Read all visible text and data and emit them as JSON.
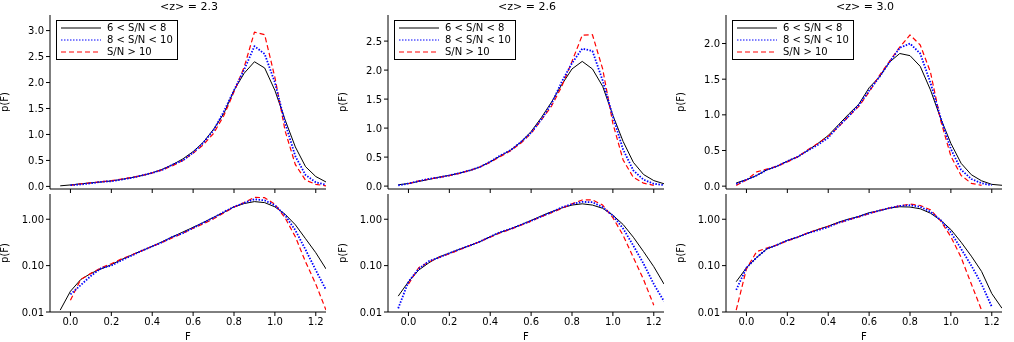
{
  "chart_data": [
    {
      "type": "line",
      "title": "<z> = 2.3",
      "ylabel": "p(F)",
      "x": [
        -0.05,
        0,
        0.05,
        0.1,
        0.15,
        0.2,
        0.25,
        0.3,
        0.35,
        0.4,
        0.45,
        0.5,
        0.55,
        0.6,
        0.65,
        0.7,
        0.75,
        0.8,
        0.85,
        0.9,
        0.95,
        1.0,
        1.05,
        1.1,
        1.15,
        1.2,
        1.25
      ],
      "xlim": [
        -0.1,
        1.25
      ],
      "xticks": [
        {
          "value": 0,
          "label": null
        },
        {
          "value": 0.2,
          "label": null
        },
        {
          "value": 0.4,
          "label": null
        },
        {
          "value": 0.6,
          "label": null
        },
        {
          "value": 0.8,
          "label": null
        },
        {
          "value": 1.0,
          "label": null
        },
        {
          "value": 1.2,
          "label": null
        }
      ],
      "ylim": [
        -0.05,
        3.3
      ],
      "yticks": [
        {
          "value": 0,
          "label": "0.0"
        },
        {
          "value": 0.5,
          "label": "0.5"
        },
        {
          "value": 1,
          "label": "1.0"
        },
        {
          "value": 1.5,
          "label": "1.5"
        },
        {
          "value": 2,
          "label": "2.0"
        },
        {
          "value": 2.5,
          "label": "2.5"
        },
        {
          "value": 3,
          "label": "3.0"
        }
      ],
      "tick_labels": "y",
      "legend": "top left",
      "grid": false,
      "series": [
        {
          "name": "6 < S/N < 8",
          "color": "#000000",
          "line_style": "solid",
          "values": [
            0.011,
            0.028,
            0.05,
            0.068,
            0.085,
            0.105,
            0.135,
            0.17,
            0.21,
            0.26,
            0.33,
            0.42,
            0.53,
            0.67,
            0.85,
            1.1,
            1.4,
            1.85,
            2.18,
            2.4,
            2.28,
            1.85,
            1.28,
            0.76,
            0.38,
            0.19,
            0.085
          ]
        },
        {
          "name": "8 < S/N < 10",
          "color": "#0000ff",
          "line_style": "dotted",
          "values": [
            null,
            0.024,
            0.038,
            0.06,
            0.088,
            0.1,
            0.13,
            0.165,
            0.21,
            0.26,
            0.32,
            0.42,
            0.5,
            0.65,
            0.84,
            1.08,
            1.44,
            1.85,
            2.25,
            2.7,
            2.55,
            2.0,
            1.22,
            0.58,
            0.22,
            0.08,
            0.03
          ]
        },
        {
          "name": "S/N > 10",
          "color": "#ff0000",
          "line_style": "dashed",
          "values": [
            null,
            0.018,
            0.05,
            0.068,
            0.09,
            0.11,
            0.14,
            0.17,
            0.21,
            0.26,
            0.32,
            0.4,
            0.5,
            0.64,
            0.8,
            1.02,
            1.36,
            1.82,
            2.3,
            2.97,
            2.92,
            2.1,
            1.07,
            0.42,
            0.12,
            0.04,
            0.011
          ]
        }
      ]
    },
    {
      "type": "line",
      "title": "<z> = 2.6",
      "ylabel": "p(F)",
      "x": [
        -0.05,
        0,
        0.05,
        0.1,
        0.15,
        0.2,
        0.25,
        0.3,
        0.35,
        0.4,
        0.45,
        0.5,
        0.55,
        0.6,
        0.65,
        0.7,
        0.75,
        0.8,
        0.85,
        0.9,
        0.95,
        1.0,
        1.05,
        1.1,
        1.15,
        1.2,
        1.25
      ],
      "xlim": [
        -0.1,
        1.25
      ],
      "xticks": [
        {
          "value": 0,
          "label": null
        },
        {
          "value": 0.2,
          "label": null
        },
        {
          "value": 0.4,
          "label": null
        },
        {
          "value": 0.6,
          "label": null
        },
        {
          "value": 0.8,
          "label": null
        },
        {
          "value": 1.0,
          "label": null
        },
        {
          "value": 1.2,
          "label": null
        }
      ],
      "ylim": [
        -0.05,
        2.95
      ],
      "yticks": [
        {
          "value": 0,
          "label": "0.0"
        },
        {
          "value": 0.5,
          "label": "0.5"
        },
        {
          "value": 1,
          "label": "1.0"
        },
        {
          "value": 1.5,
          "label": "1.5"
        },
        {
          "value": 2,
          "label": "2.0"
        },
        {
          "value": 2.5,
          "label": "2.5"
        }
      ],
      "tick_labels": "y",
      "legend": "top left",
      "grid": false,
      "series": [
        {
          "name": "6 < S/N < 8",
          "color": "#000000",
          "line_style": "solid",
          "values": [
            0.022,
            0.045,
            0.08,
            0.115,
            0.155,
            0.185,
            0.225,
            0.27,
            0.33,
            0.42,
            0.52,
            0.62,
            0.76,
            0.94,
            1.18,
            1.45,
            1.75,
            2.02,
            2.15,
            2.02,
            1.72,
            1.22,
            0.77,
            0.41,
            0.2,
            0.095,
            0.04
          ]
        },
        {
          "name": "8 < S/N < 10",
          "color": "#0000ff",
          "line_style": "dotted",
          "values": [
            0.012,
            0.045,
            0.085,
            0.125,
            0.15,
            0.185,
            0.225,
            0.27,
            0.33,
            0.42,
            0.53,
            0.62,
            0.76,
            0.92,
            1.15,
            1.42,
            1.8,
            2.12,
            2.37,
            2.33,
            1.82,
            1.2,
            0.63,
            0.27,
            0.11,
            0.04,
            0.017
          ]
        },
        {
          "name": "S/N > 10",
          "color": "#ff0000",
          "line_style": "dashed",
          "values": [
            null,
            0.04,
            0.09,
            0.12,
            0.15,
            0.18,
            0.22,
            0.27,
            0.33,
            0.41,
            0.51,
            0.61,
            0.74,
            0.91,
            1.14,
            1.38,
            1.72,
            2.15,
            2.6,
            2.61,
            2.02,
            1.08,
            0.45,
            0.15,
            0.05,
            0.014,
            null
          ]
        }
      ]
    },
    {
      "type": "line",
      "title": "<z> = 3.0",
      "ylabel": "p(F)",
      "x": [
        -0.05,
        0,
        0.05,
        0.1,
        0.15,
        0.2,
        0.25,
        0.3,
        0.35,
        0.4,
        0.45,
        0.5,
        0.55,
        0.6,
        0.65,
        0.7,
        0.75,
        0.8,
        0.85,
        0.9,
        0.95,
        1.0,
        1.05,
        1.1,
        1.15,
        1.2,
        1.25
      ],
      "xlim": [
        -0.1,
        1.25
      ],
      "xticks": [
        {
          "value": 0,
          "label": null
        },
        {
          "value": 0.2,
          "label": null
        },
        {
          "value": 0.4,
          "label": null
        },
        {
          "value": 0.6,
          "label": null
        },
        {
          "value": 0.8,
          "label": null
        },
        {
          "value": 1.0,
          "label": null
        },
        {
          "value": 1.2,
          "label": null
        }
      ],
      "ylim": [
        -0.04,
        2.4
      ],
      "yticks": [
        {
          "value": 0,
          "label": "0.0"
        },
        {
          "value": 0.5,
          "label": "0.5"
        },
        {
          "value": 1,
          "label": "1.0"
        },
        {
          "value": 1.5,
          "label": "1.5"
        },
        {
          "value": 2,
          "label": "2.0"
        }
      ],
      "tick_labels": "y",
      "legend": "top left",
      "grid": false,
      "series": [
        {
          "name": "6 < S/N < 8",
          "color": "#000000",
          "line_style": "solid",
          "values": [
            0.045,
            0.09,
            0.15,
            0.23,
            0.28,
            0.35,
            0.41,
            0.5,
            0.6,
            0.71,
            0.86,
            1.01,
            1.15,
            1.38,
            1.53,
            1.74,
            1.86,
            1.83,
            1.68,
            1.35,
            0.95,
            0.6,
            0.32,
            0.16,
            0.075,
            0.025,
            0.012
          ]
        },
        {
          "name": "8 < S/N < 10",
          "color": "#0000ff",
          "line_style": "dotted",
          "values": [
            0.03,
            0.09,
            0.15,
            0.23,
            0.28,
            0.35,
            0.41,
            0.5,
            0.58,
            0.68,
            0.84,
            0.98,
            1.14,
            1.34,
            1.53,
            1.74,
            1.94,
            2.0,
            1.86,
            1.45,
            0.96,
            0.52,
            0.23,
            0.1,
            0.04,
            0.013,
            null
          ]
        },
        {
          "name": "S/N > 10",
          "color": "#ff0000",
          "line_style": "dashed",
          "values": [
            0.011,
            0.085,
            0.2,
            0.24,
            0.28,
            0.34,
            0.41,
            0.51,
            0.6,
            0.7,
            0.83,
            0.98,
            1.12,
            1.32,
            1.55,
            1.75,
            1.95,
            2.12,
            1.98,
            1.6,
            0.92,
            0.42,
            0.15,
            0.04,
            0.011,
            null,
            null
          ]
        }
      ]
    },
    {
      "type": "line",
      "xlabel": "F",
      "ylabel": "p(F)",
      "log": "y",
      "x": [
        -0.05,
        0,
        0.05,
        0.1,
        0.15,
        0.2,
        0.25,
        0.3,
        0.35,
        0.4,
        0.45,
        0.5,
        0.55,
        0.6,
        0.65,
        0.7,
        0.75,
        0.8,
        0.85,
        0.9,
        0.95,
        1.0,
        1.05,
        1.1,
        1.15,
        1.2,
        1.25
      ],
      "xlim": [
        -0.1,
        1.25
      ],
      "xticks": [
        {
          "value": 0,
          "label": "0.0"
        },
        {
          "value": 0.2,
          "label": "0.2"
        },
        {
          "value": 0.4,
          "label": "0.4"
        },
        {
          "value": 0.6,
          "label": "0.6"
        },
        {
          "value": 0.8,
          "label": "0.8"
        },
        {
          "value": 1.0,
          "label": "1.0"
        },
        {
          "value": 1.2,
          "label": "1.2"
        }
      ],
      "ylim": [
        0.01,
        3.5
      ],
      "yticks": [
        {
          "value": 0.01,
          "label": "0.01"
        },
        {
          "value": 0.1,
          "label": "0.10"
        },
        {
          "value": 1,
          "label": "1.00"
        }
      ],
      "grid": false,
      "series": [
        {
          "color": "#000000",
          "line_style": "solid",
          "values": [
            0.011,
            0.028,
            0.05,
            0.068,
            0.085,
            0.105,
            0.135,
            0.17,
            0.21,
            0.26,
            0.33,
            0.42,
            0.53,
            0.67,
            0.85,
            1.1,
            1.4,
            1.85,
            2.18,
            2.4,
            2.28,
            1.85,
            1.28,
            0.76,
            0.38,
            0.19,
            0.085
          ]
        },
        {
          "color": "#0000ff",
          "line_style": "dotted",
          "values": [
            null,
            0.024,
            0.038,
            0.06,
            0.088,
            0.1,
            0.13,
            0.165,
            0.21,
            0.26,
            0.32,
            0.42,
            0.5,
            0.65,
            0.84,
            1.08,
            1.44,
            1.85,
            2.25,
            2.7,
            2.55,
            2.0,
            1.22,
            0.58,
            0.22,
            0.08,
            0.03
          ]
        },
        {
          "color": "#ff0000",
          "line_style": "dashed",
          "values": [
            null,
            0.018,
            0.05,
            0.068,
            0.09,
            0.11,
            0.14,
            0.17,
            0.21,
            0.26,
            0.32,
            0.4,
            0.5,
            0.64,
            0.8,
            1.02,
            1.36,
            1.82,
            2.3,
            2.97,
            2.92,
            2.1,
            1.07,
            0.42,
            0.12,
            0.04,
            0.011
          ]
        }
      ]
    },
    {
      "type": "line",
      "xlabel": "F",
      "ylabel": "p(F)",
      "log": "y",
      "x": [
        -0.05,
        0,
        0.05,
        0.1,
        0.15,
        0.2,
        0.25,
        0.3,
        0.35,
        0.4,
        0.45,
        0.5,
        0.55,
        0.6,
        0.65,
        0.7,
        0.75,
        0.8,
        0.85,
        0.9,
        0.95,
        1.0,
        1.05,
        1.1,
        1.15,
        1.2,
        1.25
      ],
      "xlim": [
        -0.1,
        1.25
      ],
      "xticks": [
        {
          "value": 0,
          "label": "0.0"
        },
        {
          "value": 0.2,
          "label": "0.2"
        },
        {
          "value": 0.4,
          "label": "0.4"
        },
        {
          "value": 0.6,
          "label": "0.6"
        },
        {
          "value": 0.8,
          "label": "0.8"
        },
        {
          "value": 1.0,
          "label": "1.0"
        },
        {
          "value": 1.2,
          "label": "1.2"
        }
      ],
      "ylim": [
        0.01,
        3.5
      ],
      "yticks": [
        {
          "value": 0.01,
          "label": "0.01"
        },
        {
          "value": 0.1,
          "label": "0.10"
        },
        {
          "value": 1,
          "label": "1.00"
        }
      ],
      "grid": false,
      "series": [
        {
          "color": "#000000",
          "line_style": "solid",
          "values": [
            0.022,
            0.045,
            0.08,
            0.115,
            0.155,
            0.185,
            0.225,
            0.27,
            0.33,
            0.42,
            0.52,
            0.62,
            0.76,
            0.94,
            1.18,
            1.45,
            1.75,
            2.02,
            2.15,
            2.02,
            1.72,
            1.22,
            0.77,
            0.41,
            0.2,
            0.095,
            0.04
          ]
        },
        {
          "color": "#0000ff",
          "line_style": "dotted",
          "values": [
            0.012,
            0.045,
            0.085,
            0.125,
            0.15,
            0.185,
            0.225,
            0.27,
            0.33,
            0.42,
            0.53,
            0.62,
            0.76,
            0.92,
            1.15,
            1.42,
            1.8,
            2.12,
            2.37,
            2.33,
            1.82,
            1.2,
            0.63,
            0.27,
            0.11,
            0.04,
            0.017
          ]
        },
        {
          "color": "#ff0000",
          "line_style": "dashed",
          "values": [
            null,
            0.04,
            0.09,
            0.12,
            0.15,
            0.18,
            0.22,
            0.27,
            0.33,
            0.41,
            0.51,
            0.61,
            0.74,
            0.91,
            1.14,
            1.38,
            1.72,
            2.15,
            2.6,
            2.61,
            2.02,
            1.08,
            0.45,
            0.15,
            0.05,
            0.014,
            null
          ]
        }
      ]
    },
    {
      "type": "line",
      "xlabel": "F",
      "ylabel": "p(F)",
      "log": "y",
      "x": [
        -0.05,
        0,
        0.05,
        0.1,
        0.15,
        0.2,
        0.25,
        0.3,
        0.35,
        0.4,
        0.45,
        0.5,
        0.55,
        0.6,
        0.65,
        0.7,
        0.75,
        0.8,
        0.85,
        0.9,
        0.95,
        1.0,
        1.05,
        1.1,
        1.15,
        1.2,
        1.25
      ],
      "xlim": [
        -0.1,
        1.25
      ],
      "xticks": [
        {
          "value": 0,
          "label": "0.0"
        },
        {
          "value": 0.2,
          "label": "0.2"
        },
        {
          "value": 0.4,
          "label": "0.4"
        },
        {
          "value": 0.6,
          "label": "0.6"
        },
        {
          "value": 0.8,
          "label": "0.8"
        },
        {
          "value": 1.0,
          "label": "1.0"
        },
        {
          "value": 1.2,
          "label": "1.2"
        }
      ],
      "ylim": [
        0.01,
        3.5
      ],
      "yticks": [
        {
          "value": 0.01,
          "label": "0.01"
        },
        {
          "value": 0.1,
          "label": "0.10"
        },
        {
          "value": 1,
          "label": "1.00"
        }
      ],
      "grid": false,
      "series": [
        {
          "color": "#000000",
          "line_style": "solid",
          "values": [
            0.045,
            0.09,
            0.15,
            0.23,
            0.28,
            0.35,
            0.41,
            0.5,
            0.6,
            0.71,
            0.86,
            1.01,
            1.15,
            1.38,
            1.53,
            1.74,
            1.86,
            1.83,
            1.68,
            1.35,
            0.95,
            0.6,
            0.32,
            0.16,
            0.075,
            0.025,
            0.012
          ]
        },
        {
          "color": "#0000ff",
          "line_style": "dotted",
          "values": [
            0.03,
            0.09,
            0.15,
            0.23,
            0.28,
            0.35,
            0.41,
            0.5,
            0.58,
            0.68,
            0.84,
            0.98,
            1.14,
            1.34,
            1.53,
            1.74,
            1.94,
            2.0,
            1.86,
            1.45,
            0.96,
            0.52,
            0.23,
            0.1,
            0.04,
            0.013,
            null
          ]
        },
        {
          "color": "#ff0000",
          "line_style": "dashed",
          "values": [
            0.011,
            0.085,
            0.2,
            0.24,
            0.28,
            0.34,
            0.41,
            0.51,
            0.6,
            0.7,
            0.83,
            0.98,
            1.12,
            1.32,
            1.55,
            1.75,
            1.95,
            2.12,
            1.98,
            1.6,
            0.92,
            0.42,
            0.15,
            0.04,
            0.011,
            null,
            null
          ]
        }
      ]
    }
  ]
}
